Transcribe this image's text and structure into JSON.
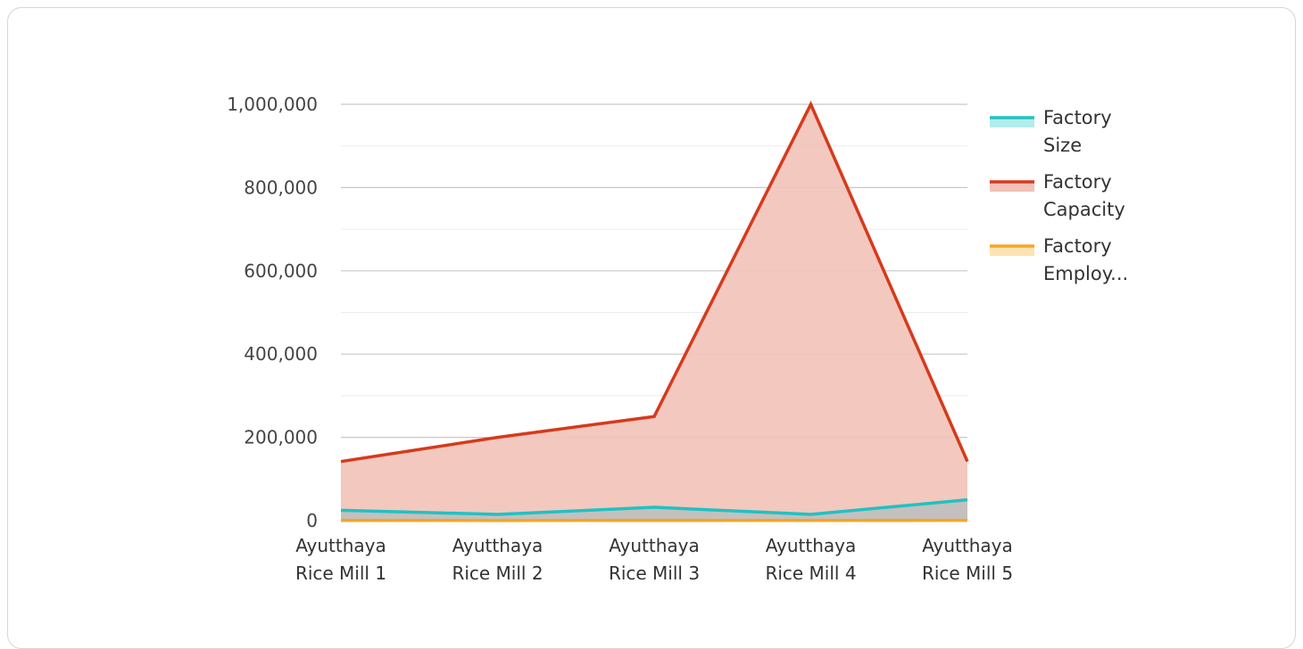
{
  "chart_data": {
    "type": "area",
    "title": "",
    "xlabel": "",
    "ylabel": "",
    "categories": [
      [
        "Ayutthaya",
        "Rice Mill 1"
      ],
      [
        "Ayutthaya",
        "Rice Mill 2"
      ],
      [
        "Ayutthaya",
        "Rice Mill 3"
      ],
      [
        "Ayutthaya",
        "Rice Mill 4"
      ],
      [
        "Ayutthaya",
        "Rice Mill 5"
      ]
    ],
    "ylim": [
      0,
      1000000
    ],
    "yticks": [
      0,
      200000,
      400000,
      600000,
      800000,
      1000000
    ],
    "ytick_labels": [
      "0",
      "200,000",
      "400,000",
      "600,000",
      "800,000",
      "1,000,000"
    ],
    "grid": true,
    "legend_position": "right",
    "series": [
      {
        "name": "Factory Capacity",
        "legend_lines": [
          "Factory",
          "Capacity"
        ],
        "color": "#d63a1c",
        "fill": "#f2c2b8",
        "values": [
          142000,
          200000,
          250000,
          1000000,
          142000
        ]
      },
      {
        "name": "Factory Size",
        "legend_lines": [
          "Factory",
          "Size"
        ],
        "color": "#1fc2c2",
        "fill": "#bfbfbf",
        "values": [
          25000,
          15000,
          32000,
          15000,
          50000
        ]
      },
      {
        "name": "Factory Employ...",
        "legend_lines": [
          "Factory",
          "Employ..."
        ],
        "color": "#f5a623",
        "fill": "#fde2b3",
        "values": [
          500,
          400,
          600,
          500,
          700
        ]
      }
    ],
    "legend_order": [
      1,
      0,
      2
    ]
  }
}
